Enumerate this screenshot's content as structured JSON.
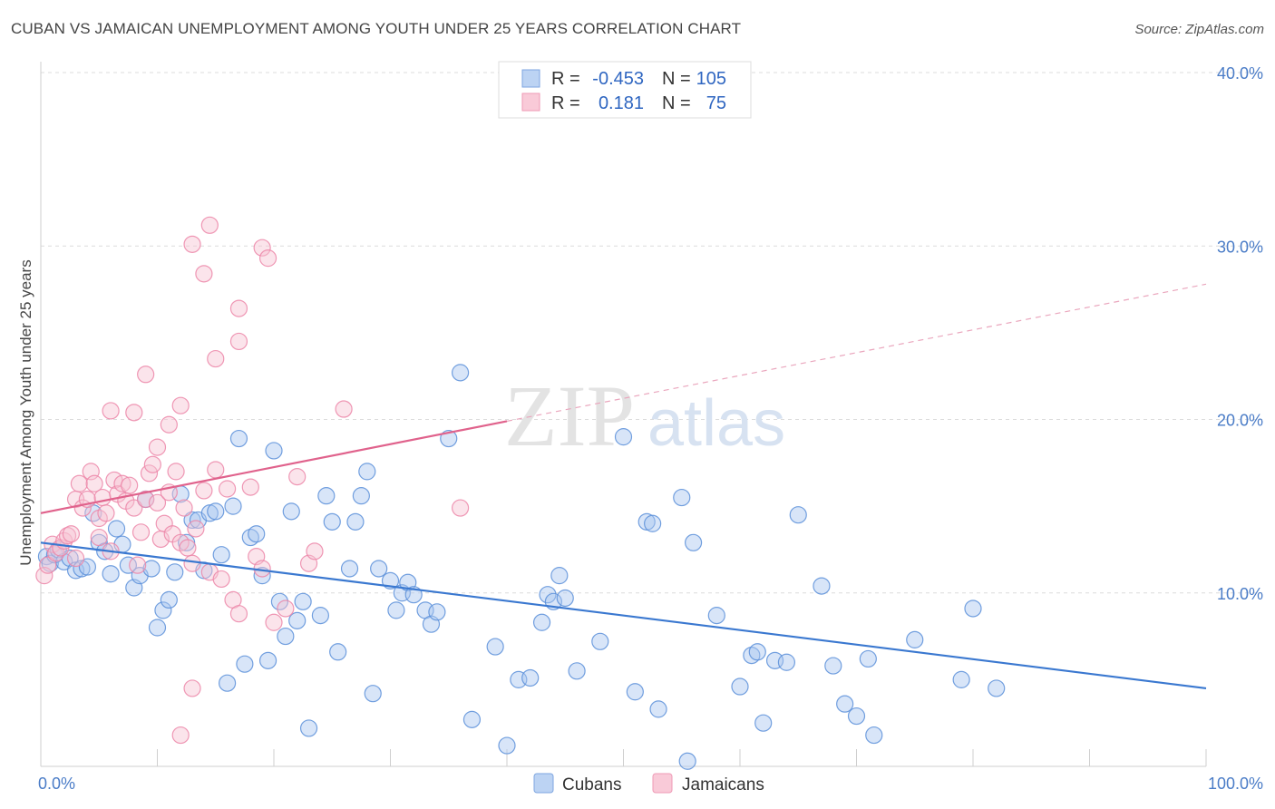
{
  "title": "CUBAN VS JAMAICAN UNEMPLOYMENT AMONG YOUTH UNDER 25 YEARS CORRELATION CHART",
  "source": "Source: ZipAtlas.com",
  "watermark": {
    "zip": "ZIP",
    "atlas": "atlas"
  },
  "legend": {
    "rows": [
      {
        "r_label": "R =",
        "r_value": "-0.453",
        "n_label": "N =",
        "n_value": "105",
        "color": "#8fb4e8"
      },
      {
        "r_label": "R =",
        "r_value": "0.181",
        "n_label": "N =",
        "n_value": "75",
        "color": "#f3a6bf"
      }
    ]
  },
  "bottom_legend": [
    {
      "label": "Cubans",
      "color": "#8fb4e8"
    },
    {
      "label": "Jamaicans",
      "color": "#f3a6bf"
    }
  ],
  "chart_data": {
    "type": "scatter",
    "title": "CUBAN VS JAMAICAN UNEMPLOYMENT AMONG YOUTH UNDER 25 YEARS CORRELATION CHART",
    "xlabel": "",
    "ylabel": "Unemployment Among Youth under 25 years",
    "xlim": [
      0,
      100
    ],
    "ylim": [
      0,
      40
    ],
    "x_tick_labels": [
      "0.0%",
      "100.0%"
    ],
    "y_ticks": [
      10,
      20,
      30,
      40
    ],
    "y_tick_labels": [
      "10.0%",
      "20.0%",
      "30.0%",
      "40.0%"
    ],
    "grid": true,
    "legend_position": "top-center",
    "series": [
      {
        "name": "Cubans",
        "color": "#5b8fd9",
        "fill": "#a9c6ef",
        "trend": {
          "x0": 0,
          "y0": 12.9,
          "x1": 100,
          "y1": 4.5,
          "color": "#3a78d0"
        },
        "points": [
          [
            0.5,
            12.1
          ],
          [
            0.8,
            11.7
          ],
          [
            1.2,
            12.2
          ],
          [
            1.5,
            12.5
          ],
          [
            2,
            11.8
          ],
          [
            2.5,
            12.0
          ],
          [
            3,
            11.3
          ],
          [
            3.5,
            11.4
          ],
          [
            4,
            11.5
          ],
          [
            4.5,
            14.6
          ],
          [
            5,
            12.9
          ],
          [
            5.5,
            12.4
          ],
          [
            6,
            11.1
          ],
          [
            6.5,
            13.7
          ],
          [
            7,
            12.8
          ],
          [
            7.5,
            11.6
          ],
          [
            8,
            10.3
          ],
          [
            8.5,
            11.0
          ],
          [
            9,
            15.4
          ],
          [
            9.5,
            11.4
          ],
          [
            10,
            8.0
          ],
          [
            10.5,
            9.0
          ],
          [
            11,
            9.6
          ],
          [
            11.5,
            11.2
          ],
          [
            12,
            15.7
          ],
          [
            12.5,
            12.9
          ],
          [
            13,
            14.2
          ],
          [
            13.5,
            14.2
          ],
          [
            14,
            11.3
          ],
          [
            14.5,
            14.6
          ],
          [
            15,
            14.7
          ],
          [
            15.5,
            12.2
          ],
          [
            16,
            4.8
          ],
          [
            16.5,
            15.0
          ],
          [
            17,
            18.9
          ],
          [
            17.5,
            5.9
          ],
          [
            18,
            13.2
          ],
          [
            18.5,
            13.4
          ],
          [
            19,
            11.0
          ],
          [
            19.5,
            6.1
          ],
          [
            20,
            18.2
          ],
          [
            20.5,
            9.5
          ],
          [
            21,
            7.5
          ],
          [
            21.5,
            14.7
          ],
          [
            22,
            8.4
          ],
          [
            22.5,
            9.5
          ],
          [
            23,
            2.2
          ],
          [
            24,
            8.7
          ],
          [
            24.5,
            15.6
          ],
          [
            25,
            14.1
          ],
          [
            25.5,
            6.6
          ],
          [
            26.5,
            11.4
          ],
          [
            27,
            14.1
          ],
          [
            27.5,
            15.6
          ],
          [
            28,
            17.0
          ],
          [
            28.5,
            4.2
          ],
          [
            29,
            11.4
          ],
          [
            30,
            10.7
          ],
          [
            30.5,
            9.0
          ],
          [
            31,
            10.0
          ],
          [
            31.5,
            10.6
          ],
          [
            32,
            9.9
          ],
          [
            33,
            9.0
          ],
          [
            33.5,
            8.2
          ],
          [
            34,
            8.9
          ],
          [
            35,
            18.9
          ],
          [
            37,
            2.7
          ],
          [
            36,
            22.7
          ],
          [
            40,
            1.2
          ],
          [
            39,
            6.9
          ],
          [
            41,
            5.0
          ],
          [
            42,
            5.1
          ],
          [
            43,
            8.3
          ],
          [
            43.5,
            9.9
          ],
          [
            44,
            9.5
          ],
          [
            44.5,
            11.0
          ],
          [
            45,
            9.7
          ],
          [
            46,
            5.5
          ],
          [
            48,
            7.2
          ],
          [
            50,
            19.0
          ],
          [
            51,
            4.3
          ],
          [
            52,
            14.1
          ],
          [
            52.5,
            14.0
          ],
          [
            53,
            3.3
          ],
          [
            55,
            15.5
          ],
          [
            56,
            12.9
          ],
          [
            55.5,
            0.3
          ],
          [
            58,
            8.7
          ],
          [
            60,
            4.6
          ],
          [
            61,
            6.4
          ],
          [
            61.5,
            6.6
          ],
          [
            62,
            2.5
          ],
          [
            63,
            6.1
          ],
          [
            64,
            6.0
          ],
          [
            65,
            14.5
          ],
          [
            67,
            10.4
          ],
          [
            68,
            5.8
          ],
          [
            69,
            3.6
          ],
          [
            70,
            2.9
          ],
          [
            71,
            6.2
          ],
          [
            71.5,
            1.8
          ],
          [
            75,
            7.3
          ],
          [
            79,
            5.0
          ],
          [
            80,
            9.1
          ],
          [
            82,
            4.5
          ]
        ]
      },
      {
        "name": "Jamaicans",
        "color": "#ec86a8",
        "fill": "#f7c3d3",
        "trend": {
          "x0": 0,
          "y0": 14.6,
          "x1": 40,
          "y1": 19.9,
          "color": "#e0628c"
        },
        "trend_extension": {
          "x0": 40,
          "y0": 19.9,
          "x1": 100,
          "y1": 27.8
        },
        "points": [
          [
            0.3,
            11.0
          ],
          [
            0.6,
            11.6
          ],
          [
            1,
            12.8
          ],
          [
            1.3,
            12.3
          ],
          [
            1.7,
            12.6
          ],
          [
            2,
            13.0
          ],
          [
            2.3,
            13.3
          ],
          [
            2.6,
            13.4
          ],
          [
            3,
            15.4
          ],
          [
            3.3,
            16.3
          ],
          [
            3.6,
            14.9
          ],
          [
            4,
            15.4
          ],
          [
            4.3,
            17.0
          ],
          [
            4.6,
            16.3
          ],
          [
            5,
            14.3
          ],
          [
            5.3,
            15.5
          ],
          [
            5.6,
            14.6
          ],
          [
            6,
            12.4
          ],
          [
            6.3,
            16.5
          ],
          [
            6.6,
            15.7
          ],
          [
            7,
            16.3
          ],
          [
            7.3,
            15.3
          ],
          [
            7.6,
            16.2
          ],
          [
            8,
            14.9
          ],
          [
            8.3,
            11.6
          ],
          [
            8.6,
            13.5
          ],
          [
            9,
            15.4
          ],
          [
            9.3,
            16.9
          ],
          [
            9.6,
            17.4
          ],
          [
            10,
            15.2
          ],
          [
            10.3,
            13.1
          ],
          [
            10.6,
            14.0
          ],
          [
            11,
            15.8
          ],
          [
            11.3,
            13.4
          ],
          [
            11.6,
            17.0
          ],
          [
            12,
            12.9
          ],
          [
            12.3,
            14.9
          ],
          [
            12.6,
            12.6
          ],
          [
            13,
            11.7
          ],
          [
            13.3,
            13.7
          ],
          [
            14,
            15.9
          ],
          [
            14.5,
            11.2
          ],
          [
            15,
            17.1
          ],
          [
            15.5,
            10.8
          ],
          [
            16,
            16.0
          ],
          [
            16.5,
            9.6
          ],
          [
            17,
            8.8
          ],
          [
            18,
            16.1
          ],
          [
            18.5,
            12.1
          ],
          [
            19,
            11.4
          ],
          [
            20,
            8.3
          ],
          [
            21,
            9.1
          ],
          [
            22,
            16.7
          ],
          [
            23,
            11.7
          ],
          [
            23.5,
            12.4
          ],
          [
            8,
            20.4
          ],
          [
            9,
            22.6
          ],
          [
            10,
            18.4
          ],
          [
            11,
            19.7
          ],
          [
            12,
            20.8
          ],
          [
            13,
            30.1
          ],
          [
            14,
            28.4
          ],
          [
            14.5,
            31.2
          ],
          [
            15,
            23.5
          ],
          [
            17,
            26.4
          ],
          [
            17,
            24.5
          ],
          [
            19,
            29.9
          ],
          [
            19.5,
            29.3
          ],
          [
            6,
            20.5
          ],
          [
            26,
            20.6
          ],
          [
            36,
            14.9
          ],
          [
            13,
            4.5
          ],
          [
            12,
            1.8
          ],
          [
            3,
            12.0
          ],
          [
            5,
            13.2
          ]
        ]
      }
    ]
  }
}
